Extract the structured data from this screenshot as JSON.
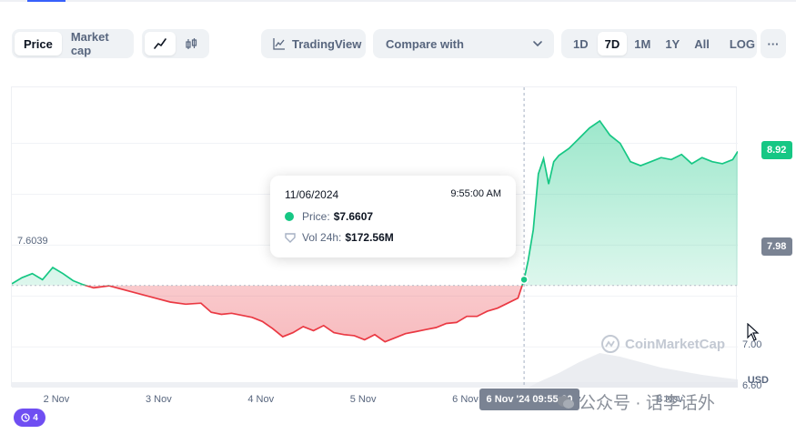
{
  "toolbar": {
    "view_tabs": [
      {
        "label": "Price",
        "active": true
      },
      {
        "label": "Market cap",
        "active": false
      }
    ],
    "chart_style": {
      "line_icon": "line-chart-icon",
      "candle_icon": "candlestick-icon",
      "active": "line"
    },
    "tradingview_label": "TradingView",
    "compare_label": "Compare with",
    "ranges": [
      {
        "label": "1D",
        "active": false
      },
      {
        "label": "7D",
        "active": true
      },
      {
        "label": "1M",
        "active": false
      },
      {
        "label": "1Y",
        "active": false
      },
      {
        "label": "All",
        "active": false
      }
    ],
    "log_label": "LOG",
    "more_label": "···"
  },
  "tooltip": {
    "date": "11/06/2024",
    "time": "9:55:00 AM",
    "price_label": "Price:",
    "price_value": "$7.6607",
    "vol_label": "Vol 24h:",
    "vol_value": "$172.56M"
  },
  "crosshair_x_label": "6 Nov '24 09:55:00",
  "start_price_label": "7.6039",
  "current_price_label": "8.92",
  "crosshair_price_label": "7.98",
  "currency_label": "USD",
  "watermark_text": "CoinMarketCap",
  "history_count": "4",
  "overlay_text": "公众号 · 话李话外",
  "colors": {
    "up": "#16c784",
    "down": "#ea3943",
    "accent": "#3861fb",
    "muted": "#58667e",
    "crosshair_badge": "#7a8393",
    "history_badge": "#6f4ef2"
  },
  "chart_data": {
    "type": "area",
    "baseline": 7.6039,
    "ylim": [
      6.6,
      9.55
    ],
    "yticks": [
      {
        "value": 7.0,
        "label": "7.00"
      },
      {
        "value": 6.6,
        "label": "6.60"
      }
    ],
    "xlim": [
      1.55,
      8.65
    ],
    "xticks": [
      {
        "value": 2,
        "label": "2 Nov"
      },
      {
        "value": 3,
        "label": "3 Nov"
      },
      {
        "value": 4,
        "label": "4 Nov"
      },
      {
        "value": 5,
        "label": "5 Nov"
      },
      {
        "value": 6,
        "label": "6 Nov"
      },
      {
        "value": 7,
        "label": "7 Nov"
      },
      {
        "value": 8,
        "label": "8 Nov"
      }
    ],
    "crosshair": {
      "x": 6.56,
      "y": 7.6607
    },
    "series": [
      {
        "x": [
          1.55,
          1.65,
          1.75,
          1.85,
          1.95,
          2.05,
          2.15,
          2.25,
          2.35,
          2.5,
          2.65,
          2.8,
          2.95,
          3.1,
          3.25,
          3.4,
          3.5,
          3.6,
          3.7,
          3.8,
          3.9,
          4.0,
          4.1,
          4.2,
          4.3,
          4.4,
          4.5,
          4.6,
          4.7,
          4.8,
          4.9,
          5.0,
          5.1,
          5.2,
          5.3,
          5.4,
          5.5,
          5.6,
          5.7,
          5.8,
          5.9,
          6.0,
          6.1,
          6.2,
          6.3,
          6.4,
          6.5,
          6.56,
          6.6,
          6.65,
          6.7,
          6.75,
          6.8,
          6.85,
          6.9,
          7.0,
          7.1,
          7.2,
          7.3,
          7.4,
          7.5,
          7.6,
          7.7,
          7.8,
          7.9,
          8.0,
          8.1,
          8.2,
          8.3,
          8.4,
          8.5,
          8.6,
          8.65
        ],
        "y": [
          7.62,
          7.68,
          7.72,
          7.66,
          7.78,
          7.72,
          7.65,
          7.61,
          7.58,
          7.6,
          7.56,
          7.52,
          7.48,
          7.44,
          7.42,
          7.43,
          7.34,
          7.32,
          7.33,
          7.31,
          7.29,
          7.25,
          7.18,
          7.1,
          7.14,
          7.2,
          7.16,
          7.21,
          7.14,
          7.12,
          7.11,
          7.07,
          7.12,
          7.05,
          7.09,
          7.13,
          7.15,
          7.17,
          7.19,
          7.23,
          7.24,
          7.3,
          7.3,
          7.35,
          7.38,
          7.43,
          7.48,
          7.66,
          7.85,
          8.15,
          8.7,
          8.85,
          8.6,
          8.82,
          8.88,
          8.95,
          9.05,
          9.15,
          9.22,
          9.08,
          9.0,
          8.82,
          8.78,
          8.82,
          8.86,
          8.84,
          8.89,
          8.8,
          8.86,
          8.82,
          8.8,
          8.84,
          8.92
        ]
      }
    ]
  }
}
